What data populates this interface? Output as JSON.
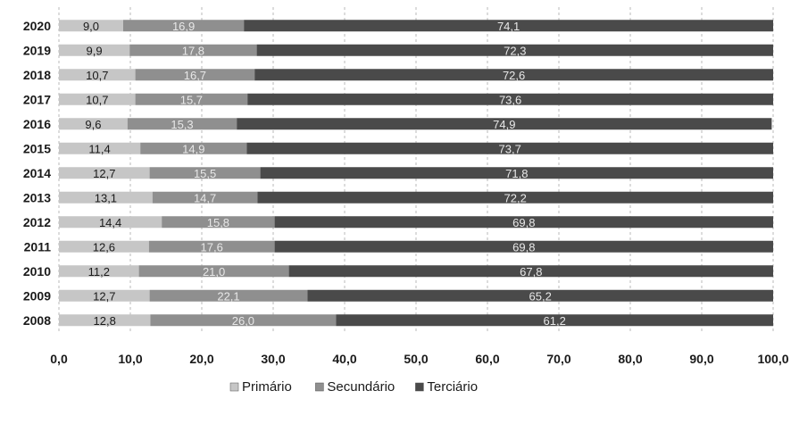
{
  "chart_data": {
    "type": "bar",
    "orientation": "horizontal",
    "stacked": true,
    "categories": [
      "2020",
      "2019",
      "2018",
      "2017",
      "2016",
      "2015",
      "2014",
      "2013",
      "2012",
      "2011",
      "2010",
      "2009",
      "2008"
    ],
    "series": [
      {
        "name": "Primário",
        "color": "#c6c6c6",
        "values": [
          9.0,
          9.9,
          10.7,
          10.7,
          9.6,
          11.4,
          12.7,
          13.1,
          14.4,
          12.6,
          11.2,
          12.7,
          12.8
        ],
        "labels": [
          "9,0",
          "9,9",
          "10,7",
          "10,7",
          "9,6",
          "11,4",
          "12,7",
          "13,1",
          "14,4",
          "12,6",
          "11,2",
          "12,7",
          "12,8"
        ]
      },
      {
        "name": "Secundário",
        "color": "#8f8f8f",
        "values": [
          16.9,
          17.8,
          16.7,
          15.7,
          15.3,
          14.9,
          15.5,
          14.7,
          15.8,
          17.6,
          21.0,
          22.1,
          26.0
        ],
        "labels": [
          "16,9",
          "17,8",
          "16,7",
          "15,7",
          "15,3",
          "14,9",
          "15,5",
          "14,7",
          "15,8",
          "17,6",
          "21,0",
          "22,1",
          "26,0"
        ]
      },
      {
        "name": "Terciário",
        "color": "#4a4a4a",
        "values": [
          74.1,
          72.3,
          72.6,
          73.6,
          74.9,
          73.7,
          71.8,
          72.2,
          69.8,
          69.8,
          67.8,
          65.2,
          61.2
        ],
        "labels": [
          "74,1",
          "72,3",
          "72,6",
          "73,6",
          "74,9",
          "73,7",
          "71,8",
          "72,2",
          "69,8",
          "69,8",
          "67,8",
          "65,2",
          "61,2"
        ]
      }
    ],
    "xlim": [
      0,
      100
    ],
    "xticks": [
      "0,0",
      "10,0",
      "20,0",
      "30,0",
      "40,0",
      "50,0",
      "60,0",
      "70,0",
      "80,0",
      "90,0",
      "100,0"
    ],
    "xlabel": "",
    "ylabel": "",
    "title": "",
    "grid": "vertical-dashed",
    "legend": "bottom-center"
  }
}
